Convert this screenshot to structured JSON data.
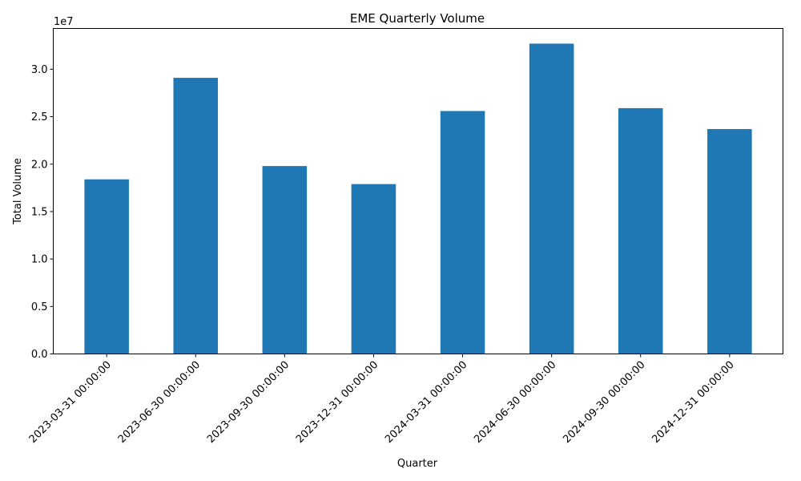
{
  "chart_data": {
    "type": "bar",
    "title": "EME Quarterly Volume",
    "xlabel": "Quarter",
    "ylabel": "Total Volume",
    "offset_label": "1e7",
    "categories": [
      "2023-03-31 00:00:00",
      "2023-06-30 00:00:00",
      "2023-09-30 00:00:00",
      "2023-12-31 00:00:00",
      "2024-03-31 00:00:00",
      "2024-06-30 00:00:00",
      "2024-09-30 00:00:00",
      "2024-12-31 00:00:00"
    ],
    "values": [
      18400000,
      29100000,
      19800000,
      17900000,
      25600000,
      32700000,
      25900000,
      23700000
    ],
    "ylim": [
      0,
      34300000
    ],
    "yticks": [
      0,
      5000000,
      10000000,
      15000000,
      20000000,
      25000000,
      30000000
    ],
    "ytick_labels": [
      "0.0",
      "0.5",
      "1.0",
      "1.5",
      "2.0",
      "2.5",
      "3.0"
    ],
    "bar_color": "#1f77b4",
    "grid": false,
    "legend": "none"
  }
}
